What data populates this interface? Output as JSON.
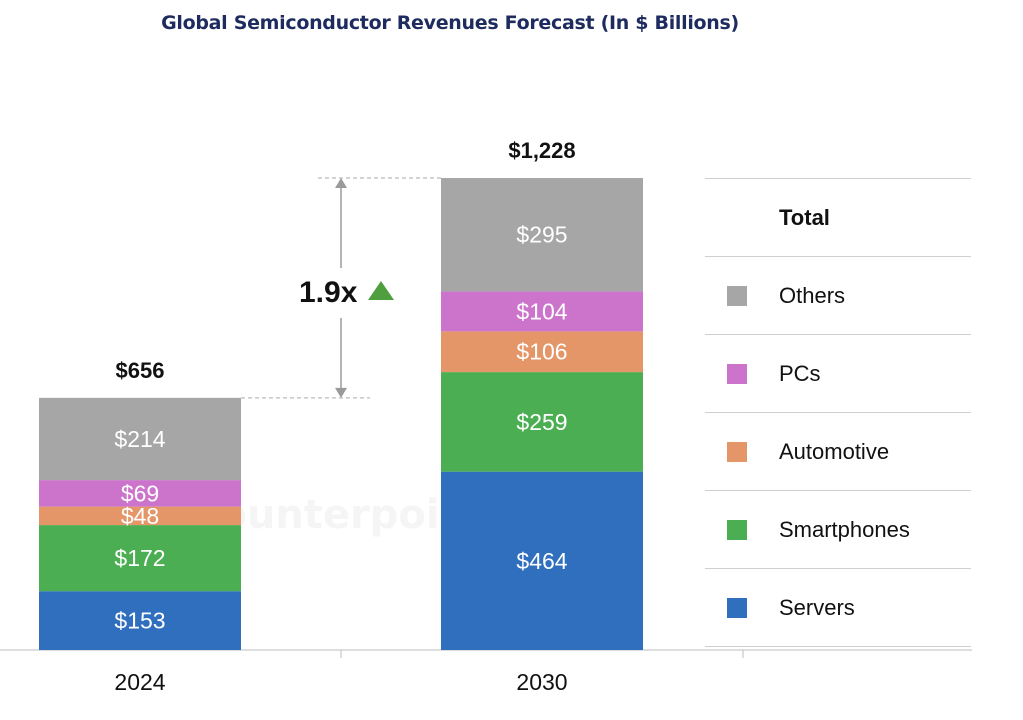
{
  "title": "Global Semiconductor Revenues Forecast (In $ Billions)",
  "watermark": "Counterpoint",
  "chart_data": {
    "type": "bar",
    "stacked": true,
    "title": "Global Semiconductor Revenues Forecast (In $ Billions)",
    "categories": [
      "2024",
      "2030"
    ],
    "totals": [
      656,
      1228
    ],
    "total_labels": [
      "$656",
      "$1,228"
    ],
    "series": [
      {
        "name": "Servers",
        "color": "#2f6fbd",
        "values": [
          153,
          464
        ],
        "labels": [
          "$153",
          "$464"
        ]
      },
      {
        "name": "Smartphones",
        "color": "#4cae52",
        "values": [
          172,
          259
        ],
        "labels": [
          "$172",
          "$259"
        ]
      },
      {
        "name": "Automotive",
        "color": "#e59669",
        "values": [
          48,
          106
        ],
        "labels": [
          "$48",
          "$106"
        ]
      },
      {
        "name": "PCs",
        "color": "#cc74cc",
        "values": [
          69,
          104
        ],
        "labels": [
          "$69",
          "$104"
        ]
      },
      {
        "name": "Others",
        "color": "#a6a6a6",
        "values": [
          214,
          295
        ],
        "labels": [
          "$214",
          "$295"
        ]
      }
    ],
    "growth_annotation": "1.9x",
    "growth_color": "#4f9f3f",
    "legend_title": "Total",
    "ylim": [
      0,
      1228
    ]
  }
}
